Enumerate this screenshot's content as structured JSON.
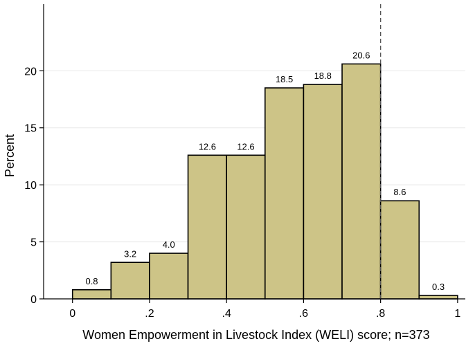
{
  "chart_data": {
    "type": "bar",
    "bin_edges": [
      0,
      0.1,
      0.2,
      0.3,
      0.4,
      0.5,
      0.6,
      0.7,
      0.8,
      0.9,
      1.0
    ],
    "values": [
      0.8,
      3.2,
      4.0,
      12.6,
      12.6,
      18.5,
      18.8,
      20.6,
      8.6,
      0.3
    ],
    "data_labels": [
      "0.8",
      "3.2",
      "4.0",
      "12.6",
      "12.6",
      "18.5",
      "18.8",
      "20.6",
      "8.6",
      "0.3"
    ],
    "xlabel": "Women Empowerment in Livestock Index  (WELI) score;  n=373",
    "ylabel": "Percent",
    "xlim": [
      -0.075,
      1.02
    ],
    "ylim": [
      0,
      25.6
    ],
    "x_ticks": [
      0,
      0.2,
      0.4,
      0.6,
      0.8,
      1.0
    ],
    "x_tick_labels": [
      "0",
      ".2",
      ".4",
      ".6",
      ".8",
      "1"
    ],
    "y_ticks": [
      0,
      5,
      10,
      15,
      20
    ],
    "y_tick_labels": [
      "0",
      "5",
      "10",
      "15",
      "20"
    ],
    "reference_line_x": 0.8,
    "grid": "horizontal",
    "legend": "none",
    "colors": {
      "bar_fill": "#cdc487",
      "bar_stroke": "#000000",
      "grid": "#e8e8e8",
      "reference_line": "#555555"
    }
  }
}
